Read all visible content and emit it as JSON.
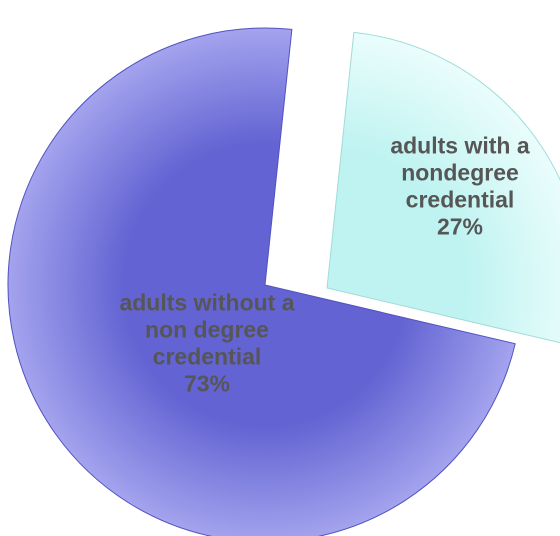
{
  "chart_data": {
    "type": "pie",
    "exploded": true,
    "slices": [
      {
        "key": "without",
        "label_lines": [
          "adults without a",
          "non degree",
          "credential"
        ],
        "value_label": "73%",
        "value": 73,
        "color": "#6363d3",
        "highlight": "#a3a3ee"
      },
      {
        "key": "with",
        "label_lines": [
          "adults with a",
          "nondegree",
          "credential"
        ],
        "value_label": "27%",
        "value": 27,
        "color": "#bff3f1",
        "highlight": "#eafdfc"
      }
    ]
  }
}
